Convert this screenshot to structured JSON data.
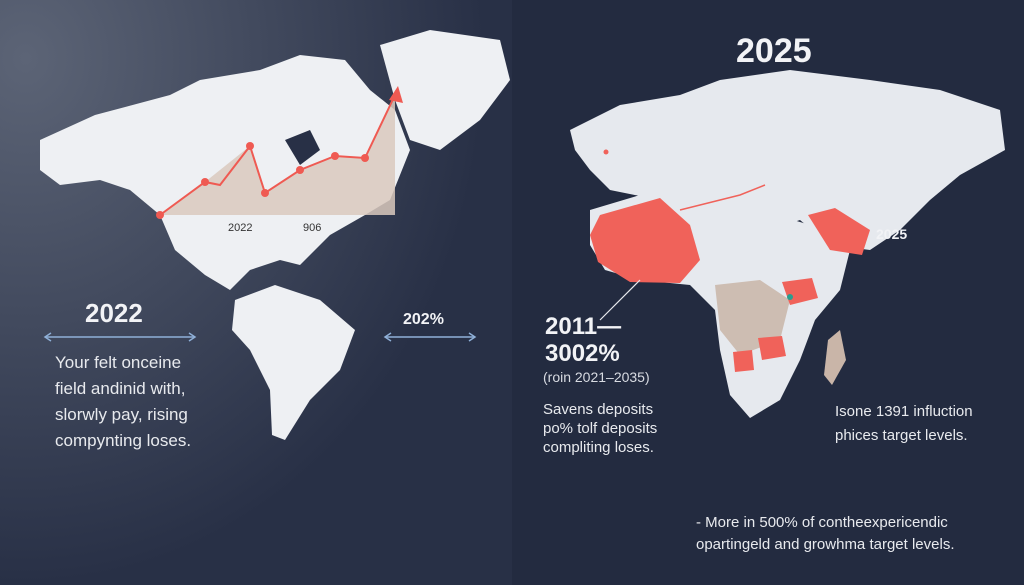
{
  "left": {
    "chart_labels": [
      "2022",
      "906"
    ],
    "heading": "2022",
    "side_label": "202%",
    "text_lines": [
      "Your felt onceine",
      "field andinid with,",
      "slorwly pay, rising",
      "compynting loses."
    ]
  },
  "right": {
    "title": "2025",
    "map_label": "2025",
    "heading_lines": [
      "2011—",
      "3002%"
    ],
    "range": "(roin 2021–2035)",
    "text_lines_left": [
      "Savens deposits",
      "po% tolf deposits",
      "compliting loses."
    ],
    "text_lines_right": [
      "I⁠sone 1391 influction",
      "phices target levels."
    ],
    "footer_lines": [
      "- More in 500% of contheexpericendic",
      "opartingeld and growhma target levels."
    ]
  }
}
